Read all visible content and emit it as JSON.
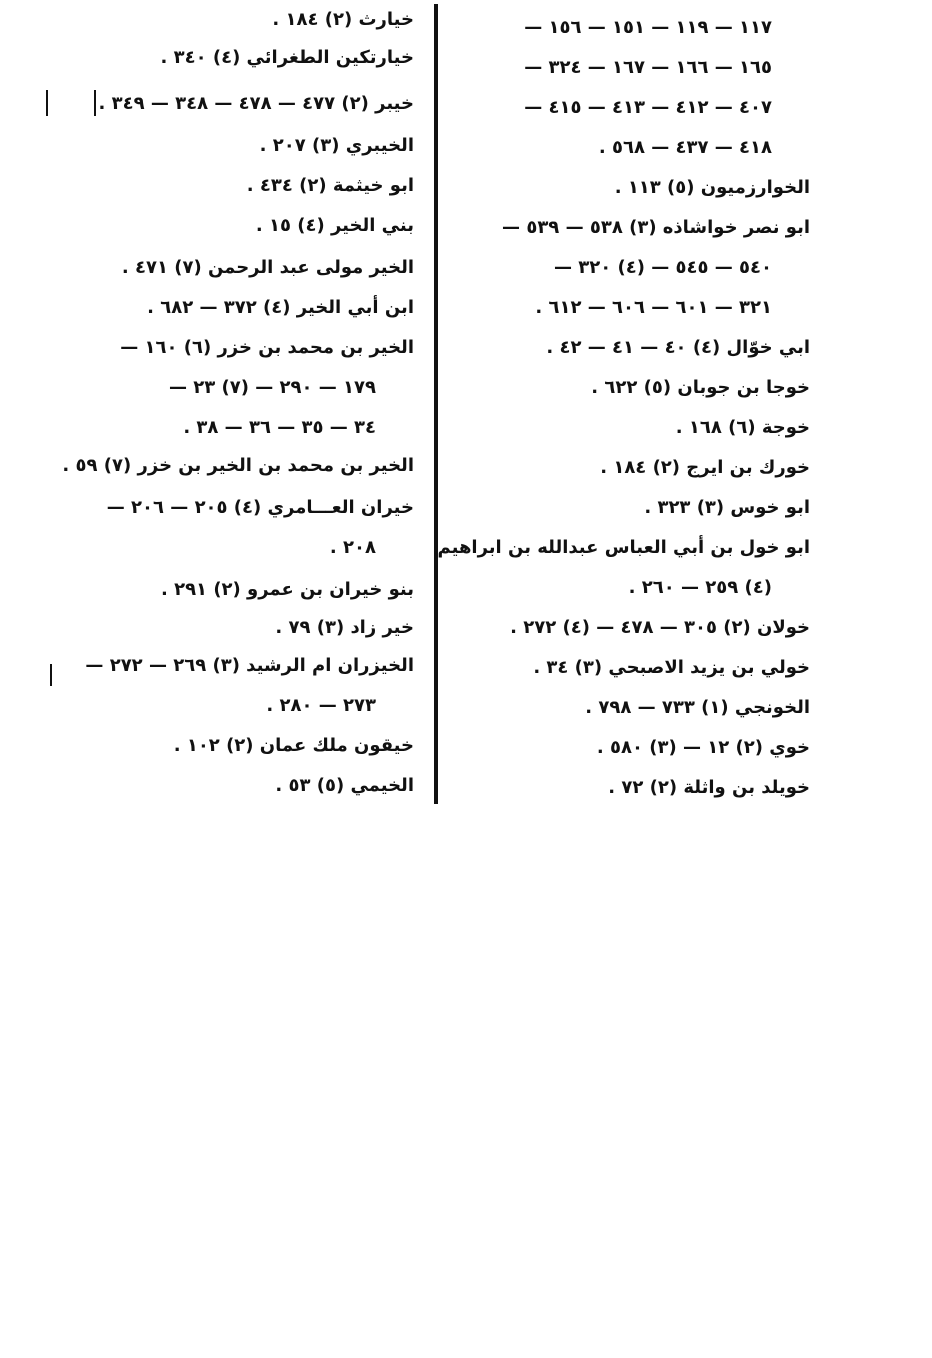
{
  "left_column": [
    {
      "text": "خيارث (٢) ١٨٤ .",
      "cont": false
    },
    {
      "text": "خيارتكين الطغرائي (٤) ٣٤٠ .",
      "cont": false
    },
    {
      "text": "خيبر (٢) ٤٧٧ — ٤٧٨ — ٣٤٨ — ٣٤٩ .",
      "cont": false
    },
    {
      "text": "الخيبري (٣) ٢٠٧ .",
      "cont": false
    },
    {
      "text": "ابو خيثمة (٢) ٤٣٤ .",
      "cont": false
    },
    {
      "text": "بني الخير (٤) ١٥ .",
      "cont": false
    },
    {
      "text": "الخير مولى عبد الرحمن (٧) ٤٧١ .",
      "cont": false
    },
    {
      "text": "ابن أبي الخير (٤) ٣٧٢ — ٦٨٢ .",
      "cont": false
    },
    {
      "text": "الخير بن محمد بن خزر (٦) ١٦٠ —",
      "cont": false
    },
    {
      "text": "١٧٩ — ٢٩٠ — (٧) ٢٣ —",
      "cont": true
    },
    {
      "text": "٣٤ — ٣٥ — ٣٦ — ٣٨ .",
      "cont": true
    },
    {
      "text": "الخير بن محمد بن الخير بن خزر (٧) ٥٩ .",
      "cont": false
    },
    {
      "text": "خيران العـــامري (٤) ٢٠٥ — ٢٠٦ —",
      "cont": false
    },
    {
      "text": "٢٠٨ .",
      "cont": true
    },
    {
      "text": "بنو خيران بن عمرو (٢) ٢٩١ .",
      "cont": false
    },
    {
      "text": "خير زاد (٣) ٧٩ .",
      "cont": false
    },
    {
      "text": "الخيزران ام الرشيد (٣) ٢٦٩ — ٢٧٢ —",
      "cont": false
    },
    {
      "text": "٢٧٣ — ٢٨٠ .",
      "cont": true
    },
    {
      "text": "خيقون ملك عمان (٢) ١٠٢ .",
      "cont": false
    },
    {
      "text": "الخيمي (٥) ٥٣ .",
      "cont": false
    }
  ],
  "right_column": [
    {
      "text": "١١٧ — ١١٩ — ١٥١ — ١٥٦ —",
      "cont": true
    },
    {
      "text": "١٦٥ — ١٦٦ — ١٦٧ — ٣٢٤ —",
      "cont": true
    },
    {
      "text": "٤٠٧ — ٤١٢ — ٤١٣ — ٤١٥ —",
      "cont": true
    },
    {
      "text": "٤١٨ — ٤٣٧ — ٥٦٨ .",
      "cont": true
    },
    {
      "text": "الخوارزميون (٥) ١١٣ .",
      "cont": false
    },
    {
      "text": "ابو نصر خواشاذه (٣) ٥٣٨ — ٥٣٩ —",
      "cont": false
    },
    {
      "text": "٥٤٠ — ٥٤٥ — (٤) ٣٢٠ —",
      "cont": true
    },
    {
      "text": "٣٢١ — ٦٠١ — ٦٠٦ — ٦١٢ .",
      "cont": true
    },
    {
      "text": "ابي خوّال (٤) ٤٠ — ٤١ — ٤٢ .",
      "cont": false
    },
    {
      "text": "خوجا بن جوبان (٥) ٦٢٢ .",
      "cont": false
    },
    {
      "text": "خوجة (٦) ١٦٨ .",
      "cont": false
    },
    {
      "text": "خورك بن ايرج (٢) ١٨٤ .",
      "cont": false
    },
    {
      "text": "ابو خوس (٣) ٣٢٣ .",
      "cont": false
    },
    {
      "text": "ابو خول بن أبي العباس عبدالله بن ابراهيم",
      "cont": false
    },
    {
      "text": "(٤) ٢٥٩ — ٢٦٠ .",
      "cont": true
    },
    {
      "text": "خولان (٢) ٣٠٥ — ٤٧٨ — (٤) ٢٧٢ .",
      "cont": false
    },
    {
      "text": "خولي بن يزيد الاصبحي (٣) ٣٤ .",
      "cont": false
    },
    {
      "text": "الخونجي (١) ٧٣٣ — ٧٩٨ .",
      "cont": false
    },
    {
      "text": "خوي (٢) ١٢ — (٣) ٥٨٠ .",
      "cont": false
    },
    {
      "text": "خويلد بن واثلة (٢) ٧٢ .",
      "cont": false
    }
  ]
}
